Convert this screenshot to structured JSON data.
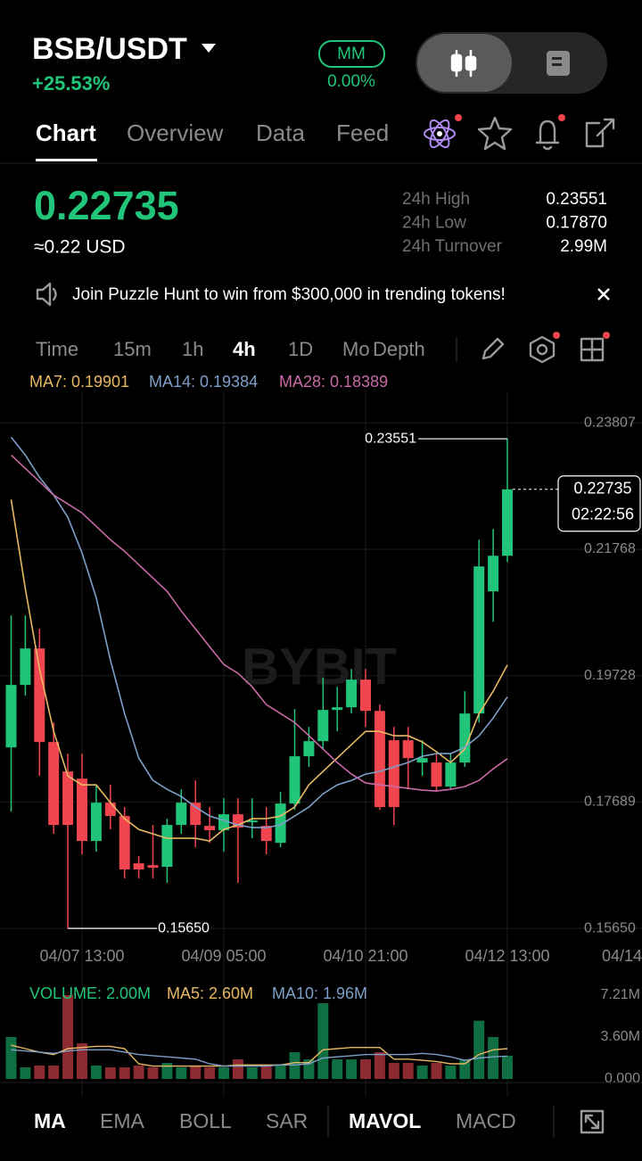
{
  "header": {
    "pair": "BSB/USDT",
    "change": "+25.53%",
    "mm_badge": "MM",
    "mm_value": "0.00%"
  },
  "tabs": [
    "Chart",
    "Overview",
    "Data",
    "Feed"
  ],
  "price": {
    "last": "0.22735",
    "usd": "≈0.22 USD"
  },
  "stats": [
    {
      "label": "24h High",
      "value": "0.23551"
    },
    {
      "label": "24h Low",
      "value": "0.17870"
    },
    {
      "label": "24h Turnover",
      "value": "2.99M"
    }
  ],
  "banner": "Join Puzzle Hunt to win from $300,000 in trending tokens!",
  "timeframes": [
    "Time",
    "15m",
    "1h",
    "4h",
    "1D",
    "Mo",
    "Depth"
  ],
  "indicators": [
    "MA",
    "EMA",
    "BOLL",
    "SAR",
    "MAVOL",
    "MACD"
  ],
  "chart_data": [
    {
      "type": "candlestick",
      "watermark": "BYBIT",
      "up_color": "#20c57a",
      "down_color": "#f0454f",
      "categories": [
        null,
        null,
        null,
        null,
        null,
        "04/07 13:00",
        null,
        null,
        null,
        null,
        null,
        null,
        null,
        null,
        null,
        "04/09 05:00",
        null,
        null,
        null,
        null,
        null,
        null,
        null,
        null,
        null,
        "04/10 21:00",
        null,
        null,
        null,
        null,
        null,
        null,
        null,
        null,
        null,
        "04/12 13:00"
      ],
      "axis_overflow_label": "04/14",
      "open": [
        0.1857,
        0.19578,
        0.20167,
        0.18657,
        0.18182,
        0.18067,
        0.1706,
        0.17678,
        0.17463,
        0.167,
        0.16671,
        0.16643,
        0.17319,
        0.17678,
        0.17304,
        0.17233,
        0.17491,
        0.17362,
        0.17304,
        0.17031,
        0.17664,
        0.18427,
        0.18671,
        0.19175,
        0.19218,
        0.19664,
        0.1916,
        0.18686,
        0.18686,
        0.18326,
        0.18326,
        0.17937,
        0.18326,
        0.19117,
        0.21088,
        0.21663
      ],
      "high": [
        0.207,
        0.207,
        0.20484,
        0.18973,
        0.1847,
        0.1847,
        0.17966,
        0.17966,
        0.17607,
        0.16815,
        0.17319,
        0.1742,
        0.17894,
        0.18038,
        0.17607,
        0.1775,
        0.1775,
        0.1775,
        0.17607,
        0.17851,
        0.19189,
        0.18901,
        0.19693,
        0.19549,
        0.19836,
        0.19836,
        0.19261,
        0.18901,
        0.18901,
        0.18686,
        0.1847,
        0.1847,
        0.19477,
        0.21922,
        0.22095,
        0.23551
      ],
      "low": [
        0.17535,
        0.19405,
        0.1811,
        0.17175,
        0.1565,
        0.16844,
        0.16887,
        0.17247,
        0.16456,
        0.16456,
        0.16456,
        0.16384,
        0.17175,
        0.16959,
        0.17031,
        0.16887,
        0.16384,
        0.17103,
        0.16844,
        0.16959,
        0.17563,
        0.18254,
        0.18542,
        0.18829,
        0.19117,
        0.18901,
        0.17563,
        0.17319,
        0.17894,
        0.1811,
        0.17851,
        0.17894,
        0.18254,
        0.18973,
        0.20599,
        0.21563
      ],
      "close": [
        0.19578,
        0.20167,
        0.18657,
        0.17319,
        0.17319,
        0.1706,
        0.17678,
        0.17463,
        0.166,
        0.166,
        0.16628,
        0.17319,
        0.17678,
        0.17319,
        0.17233,
        0.17491,
        0.17276,
        0.17391,
        0.1706,
        0.17664,
        0.18427,
        0.18671,
        0.19175,
        0.19218,
        0.19664,
        0.1916,
        0.17607,
        0.17607,
        0.18398,
        0.18398,
        0.17937,
        0.18326,
        0.19117,
        0.21491,
        0.21663,
        0.22735
      ],
      "series": [
        {
          "name": "MA7: 0.19901",
          "color": "#e9b863",
          "values": [
            0.2257,
            0.21131,
            0.19836,
            0.18829,
            0.1811,
            0.17966,
            0.17966,
            0.17679,
            0.1742,
            0.17247,
            0.17175,
            0.17103,
            0.17103,
            0.17103,
            0.1706,
            0.17247,
            0.17319,
            0.1742,
            0.1742,
            0.17463,
            0.17607,
            0.17966,
            0.18182,
            0.18398,
            0.18614,
            0.18829,
            0.18829,
            0.18758,
            0.18758,
            0.18657,
            0.18499,
            0.18326,
            0.18542,
            0.19117,
            0.19477,
            0.19901
          ]
        },
        {
          "name": "MA14: 0.19384",
          "color": "#7d9fc9",
          "values": [
            0.23577,
            0.23289,
            0.22929,
            0.22642,
            0.22282,
            0.21707,
            0.20987,
            0.1998,
            0.19117,
            0.18398,
            0.18038,
            0.17894,
            0.17779,
            0.17607,
            0.17463,
            0.17391,
            0.17319,
            0.17276,
            0.17276,
            0.17319,
            0.17463,
            0.17607,
            0.17822,
            0.17966,
            0.18038,
            0.18139,
            0.18182,
            0.18254,
            0.18326,
            0.18427,
            0.1847,
            0.1847,
            0.18571,
            0.18758,
            0.19045,
            0.19384
          ]
        },
        {
          "name": "MA28: 0.18389",
          "color": "#c96aa7",
          "values": [
            0.23289,
            0.23073,
            0.22858,
            0.22642,
            0.22498,
            0.22354,
            0.22138,
            0.21922,
            0.21735,
            0.2152,
            0.21304,
            0.21088,
            0.20772,
            0.20484,
            0.20196,
            0.19908,
            0.19765,
            0.19549,
            0.19261,
            0.19117,
            0.18973,
            0.18758,
            0.18542,
            0.18326,
            0.18139,
            0.17995,
            0.17966,
            0.17938,
            0.17909,
            0.1788,
            0.17866,
            0.17894,
            0.17938,
            0.18038,
            0.18225,
            0.18389
          ]
        }
      ],
      "ylim": [
        0.1545,
        0.243
      ],
      "yticks": [
        0.23807,
        0.21768,
        0.19728,
        0.17689,
        {
          "value": 0.1565,
          "label": "0.15650"
        }
      ],
      "grid": true,
      "annotations": [
        {
          "value": 0.23551,
          "label": "0.23551"
        },
        {
          "value": 0.1565,
          "label": "0.15650"
        }
      ],
      "last_price_tag": {
        "value": 0.22735,
        "label": "0.22735",
        "countdown": "02:22:56"
      }
    },
    {
      "type": "bar",
      "up_color": "#0f6e42",
      "down_color": "#8c2a31",
      "series": [
        {
          "name": "VOLUME: 2.00M",
          "color": "#20c57a",
          "values": [
            3.6,
            1.0,
            1.15,
            1.15,
            7.2,
            3.06,
            1.15,
            1.0,
            1.0,
            1.15,
            1.0,
            1.38,
            1.0,
            1.15,
            1.0,
            1.0,
            1.68,
            1.0,
            1.15,
            1.15,
            2.3,
            1.68,
            6.5,
            1.68,
            1.68,
            1.68,
            2.3,
            1.38,
            1.38,
            1.15,
            1.38,
            1.15,
            1.68,
            5.0,
            3.6,
            2.0
          ]
        },
        {
          "name": "MA5: 2.60M",
          "color": "#e9b863",
          "values": [
            2.9,
            2.6,
            2.3,
            2.1,
            2.6,
            2.7,
            2.8,
            2.8,
            2.6,
            1.3,
            1.1,
            1.1,
            1.1,
            1.1,
            1.1,
            1.1,
            1.2,
            1.2,
            1.2,
            1.2,
            1.4,
            1.4,
            2.5,
            2.6,
            2.7,
            2.7,
            2.7,
            1.7,
            1.7,
            1.6,
            1.5,
            1.3,
            1.3,
            2.1,
            2.5,
            2.6
          ]
        },
        {
          "name": "MA10: 1.96M",
          "color": "#7d9fc9",
          "values": [
            2.5,
            2.4,
            2.3,
            2.2,
            2.4,
            2.5,
            2.5,
            2.5,
            2.3,
            2.1,
            2.0,
            1.9,
            1.8,
            1.7,
            1.3,
            1.1,
            1.1,
            1.1,
            1.1,
            1.2,
            1.2,
            1.3,
            1.8,
            1.9,
            2.0,
            2.1,
            2.1,
            2.1,
            2.1,
            2.2,
            2.1,
            1.9,
            1.6,
            1.8,
            1.9,
            1.96
          ]
        }
      ],
      "ylim": [
        0,
        7.5
      ],
      "yticks": [
        {
          "value": 7.21,
          "label": "7.21M"
        },
        {
          "value": 3.6,
          "label": "3.60M"
        },
        {
          "value": 0,
          "label": "0.000"
        }
      ]
    }
  ]
}
